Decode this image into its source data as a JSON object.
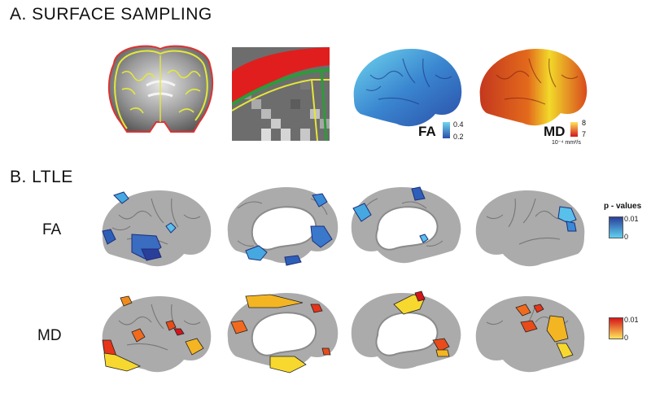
{
  "section_a": {
    "title": "A. SURFACE SAMPLING",
    "fa": {
      "label": "FA",
      "max": "0.4",
      "min": "0.2"
    },
    "md": {
      "label": "MD",
      "max": "8",
      "min": "7",
      "unit": "10⁻⁴ mm²/s"
    }
  },
  "section_b": {
    "title": "B. LTLE",
    "row_fa": "FA",
    "row_md": "MD",
    "legend_fa": {
      "title": "p - values",
      "max": "0.01",
      "min": "0"
    },
    "legend_md": {
      "max": "0.01",
      "min": "0"
    }
  },
  "colors": {
    "fa_low": "#5fd0f0",
    "fa_high": "#2a3f9a",
    "md_low": "#ffe45a",
    "md_high": "#d4151a",
    "cortex": "#a8a8a8"
  }
}
